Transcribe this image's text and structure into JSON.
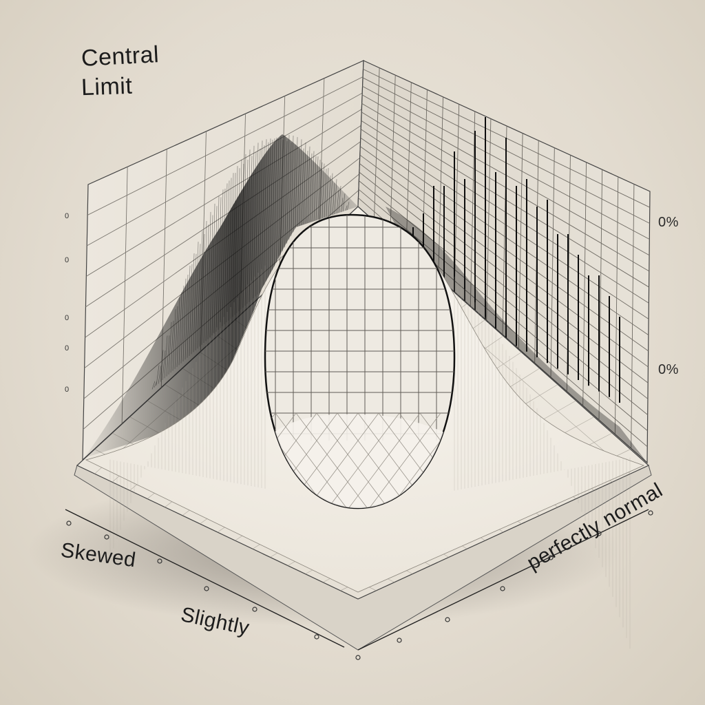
{
  "title": {
    "line1": "Central",
    "line2": "Limit"
  },
  "axis_labels": {
    "skewed": "Skewed",
    "slightly": "Slightly",
    "perfectly_normal": "perfectly normal"
  },
  "right_scale": {
    "top": "0%",
    "bottom": "0%"
  },
  "left_scale_ticks": [
    "0",
    "0",
    "0",
    "0",
    "0"
  ],
  "colors": {
    "background": "#e4ddd1",
    "ink": "#1c1c1c",
    "grid": "#6e6e6e",
    "surface": "#f1ece3"
  }
}
